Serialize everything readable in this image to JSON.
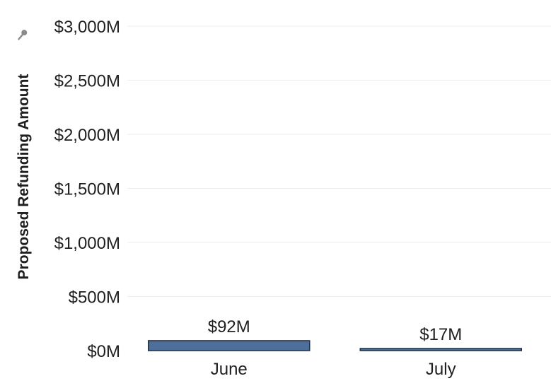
{
  "chart_data": {
    "type": "bar",
    "title": "",
    "xlabel": "",
    "ylabel": "Proposed Refunding Amount",
    "categories": [
      "June",
      "July"
    ],
    "values": [
      92,
      17
    ],
    "value_labels": [
      "$92M",
      "$17M"
    ],
    "ylim": [
      0,
      3000
    ],
    "yticks": [
      0,
      500,
      1000,
      1500,
      2000,
      2500,
      3000
    ],
    "ytick_labels": [
      "$0M",
      "$500M",
      "$1,000M",
      "$1,500M",
      "$2,000M",
      "$2,500M",
      "$3,000M"
    ],
    "grid": true,
    "legend": "none",
    "colors": {
      "bar_fill": "#4e6f9a",
      "bar_stroke": "#1f2f45",
      "pin_icon": "#8a8a8a"
    },
    "icons": {
      "axis_pin": "pin-icon"
    }
  }
}
